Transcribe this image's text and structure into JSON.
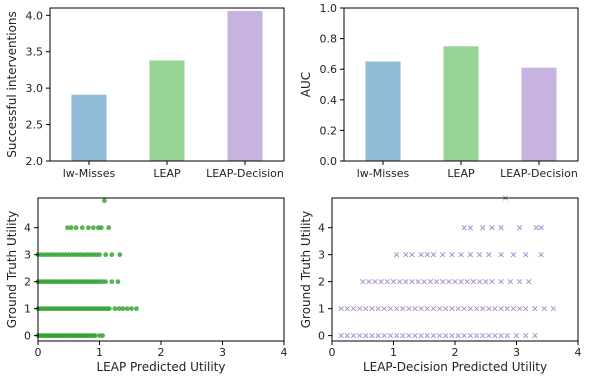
{
  "chart_data": [
    {
      "type": "bar",
      "categories": [
        "lw-Misses",
        "LEAP",
        "LEAP-Decision"
      ],
      "values": [
        2.91,
        3.38,
        4.06
      ],
      "colors": [
        "#8fbbd9",
        "#98d594",
        "#c8b3e0"
      ],
      "xlabel": "",
      "ylabel": "Successful interventions",
      "ylim": [
        2.0,
        4.1
      ],
      "yticks": [
        "2.0",
        "2.5",
        "3.0",
        "3.5",
        "4.0"
      ],
      "grid": false
    },
    {
      "type": "bar",
      "categories": [
        "lw-Misses",
        "LEAP",
        "LEAP-Decision"
      ],
      "values": [
        0.65,
        0.75,
        0.61
      ],
      "colors": [
        "#8fbbd9",
        "#98d594",
        "#c8b3e0"
      ],
      "xlabel": "",
      "ylabel": "AUC",
      "ylim": [
        0.0,
        1.0
      ],
      "yticks": [
        "0.0",
        "0.2",
        "0.4",
        "0.6",
        "0.8",
        "1.0"
      ],
      "grid": false
    },
    {
      "type": "scatter",
      "marker": "circle",
      "color": "#2ca02c",
      "xlabel": "LEAP Predicted Utility",
      "ylabel": "Ground Truth Utility",
      "xlim": [
        0,
        4
      ],
      "ylim": [
        -0.2,
        5.1
      ],
      "xticks": [
        "0",
        "1",
        "2",
        "3",
        "4"
      ],
      "yticks": [
        "0",
        "1",
        "2",
        "3",
        "4"
      ],
      "grid": false,
      "points": [
        [
          0.0,
          0
        ],
        [
          0.03,
          0
        ],
        [
          0.06,
          0
        ],
        [
          0.09,
          0
        ],
        [
          0.12,
          0
        ],
        [
          0.15,
          0
        ],
        [
          0.18,
          0
        ],
        [
          0.21,
          0
        ],
        [
          0.24,
          0
        ],
        [
          0.27,
          0
        ],
        [
          0.3,
          0
        ],
        [
          0.33,
          0
        ],
        [
          0.36,
          0
        ],
        [
          0.39,
          0
        ],
        [
          0.42,
          0
        ],
        [
          0.45,
          0
        ],
        [
          0.48,
          0
        ],
        [
          0.51,
          0
        ],
        [
          0.54,
          0
        ],
        [
          0.57,
          0
        ],
        [
          0.6,
          0
        ],
        [
          0.63,
          0
        ],
        [
          0.66,
          0
        ],
        [
          0.69,
          0
        ],
        [
          0.72,
          0
        ],
        [
          0.75,
          0
        ],
        [
          0.78,
          0
        ],
        [
          0.81,
          0
        ],
        [
          0.84,
          0
        ],
        [
          0.87,
          0
        ],
        [
          0.9,
          0
        ],
        [
          0.93,
          0
        ],
        [
          1.0,
          0
        ],
        [
          1.05,
          0
        ],
        [
          0.0,
          1
        ],
        [
          0.04,
          1
        ],
        [
          0.08,
          1
        ],
        [
          0.12,
          1
        ],
        [
          0.16,
          1
        ],
        [
          0.2,
          1
        ],
        [
          0.24,
          1
        ],
        [
          0.28,
          1
        ],
        [
          0.32,
          1
        ],
        [
          0.36,
          1
        ],
        [
          0.4,
          1
        ],
        [
          0.44,
          1
        ],
        [
          0.48,
          1
        ],
        [
          0.52,
          1
        ],
        [
          0.56,
          1
        ],
        [
          0.6,
          1
        ],
        [
          0.64,
          1
        ],
        [
          0.68,
          1
        ],
        [
          0.72,
          1
        ],
        [
          0.76,
          1
        ],
        [
          0.8,
          1
        ],
        [
          0.84,
          1
        ],
        [
          0.88,
          1
        ],
        [
          0.92,
          1
        ],
        [
          0.96,
          1
        ],
        [
          1.0,
          1
        ],
        [
          1.04,
          1
        ],
        [
          1.08,
          1
        ],
        [
          1.12,
          1
        ],
        [
          1.16,
          1
        ],
        [
          1.25,
          1
        ],
        [
          1.32,
          1
        ],
        [
          1.38,
          1
        ],
        [
          1.45,
          1
        ],
        [
          1.52,
          1
        ],
        [
          1.6,
          1
        ],
        [
          0.0,
          2
        ],
        [
          0.04,
          2
        ],
        [
          0.08,
          2
        ],
        [
          0.12,
          2
        ],
        [
          0.16,
          2
        ],
        [
          0.2,
          2
        ],
        [
          0.24,
          2
        ],
        [
          0.28,
          2
        ],
        [
          0.32,
          2
        ],
        [
          0.36,
          2
        ],
        [
          0.4,
          2
        ],
        [
          0.44,
          2
        ],
        [
          0.48,
          2
        ],
        [
          0.52,
          2
        ],
        [
          0.56,
          2
        ],
        [
          0.6,
          2
        ],
        [
          0.64,
          2
        ],
        [
          0.68,
          2
        ],
        [
          0.72,
          2
        ],
        [
          0.76,
          2
        ],
        [
          0.8,
          2
        ],
        [
          0.84,
          2
        ],
        [
          0.88,
          2
        ],
        [
          0.92,
          2
        ],
        [
          0.96,
          2
        ],
        [
          1.0,
          2
        ],
        [
          1.05,
          2
        ],
        [
          1.1,
          2
        ],
        [
          1.2,
          2
        ],
        [
          1.3,
          2
        ],
        [
          0.0,
          3
        ],
        [
          0.05,
          3
        ],
        [
          0.1,
          3
        ],
        [
          0.15,
          3
        ],
        [
          0.2,
          3
        ],
        [
          0.25,
          3
        ],
        [
          0.3,
          3
        ],
        [
          0.35,
          3
        ],
        [
          0.4,
          3
        ],
        [
          0.45,
          3
        ],
        [
          0.5,
          3
        ],
        [
          0.55,
          3
        ],
        [
          0.6,
          3
        ],
        [
          0.65,
          3
        ],
        [
          0.7,
          3
        ],
        [
          0.75,
          3
        ],
        [
          0.8,
          3
        ],
        [
          0.85,
          3
        ],
        [
          0.9,
          3
        ],
        [
          0.95,
          3
        ],
        [
          1.0,
          3
        ],
        [
          1.1,
          3
        ],
        [
          1.2,
          3
        ],
        [
          1.33,
          3
        ],
        [
          0.48,
          4
        ],
        [
          0.54,
          4
        ],
        [
          0.62,
          4
        ],
        [
          0.72,
          4
        ],
        [
          0.82,
          4
        ],
        [
          0.9,
          4
        ],
        [
          0.98,
          4
        ],
        [
          1.03,
          4
        ],
        [
          1.15,
          4
        ],
        [
          1.08,
          5
        ]
      ]
    },
    {
      "type": "scatter",
      "marker": "x",
      "color": "#9467bd",
      "xlabel": "LEAP-Decision Predicted Utility",
      "ylabel": "Ground Truth Utility",
      "xlim": [
        0,
        4
      ],
      "ylim": [
        -0.2,
        5.1
      ],
      "xticks": [
        "0",
        "1",
        "2",
        "3",
        "4"
      ],
      "yticks": [
        "0",
        "1",
        "2",
        "3",
        "4"
      ],
      "grid": false,
      "points": [
        [
          0.15,
          0
        ],
        [
          0.25,
          0
        ],
        [
          0.35,
          0
        ],
        [
          0.45,
          0
        ],
        [
          0.55,
          0
        ],
        [
          0.65,
          0
        ],
        [
          0.75,
          0
        ],
        [
          0.85,
          0
        ],
        [
          0.95,
          0
        ],
        [
          1.05,
          0
        ],
        [
          1.15,
          0
        ],
        [
          1.25,
          0
        ],
        [
          1.35,
          0
        ],
        [
          1.45,
          0
        ],
        [
          1.55,
          0
        ],
        [
          1.65,
          0
        ],
        [
          1.75,
          0
        ],
        [
          1.85,
          0
        ],
        [
          1.95,
          0
        ],
        [
          2.05,
          0
        ],
        [
          2.15,
          0
        ],
        [
          2.25,
          0
        ],
        [
          2.35,
          0
        ],
        [
          2.45,
          0
        ],
        [
          2.55,
          0
        ],
        [
          2.65,
          0
        ],
        [
          2.75,
          0
        ],
        [
          2.85,
          0
        ],
        [
          3.0,
          0
        ],
        [
          3.15,
          0
        ],
        [
          3.3,
          0
        ],
        [
          0.15,
          1
        ],
        [
          0.25,
          1
        ],
        [
          0.35,
          1
        ],
        [
          0.45,
          1
        ],
        [
          0.55,
          1
        ],
        [
          0.65,
          1
        ],
        [
          0.75,
          1
        ],
        [
          0.85,
          1
        ],
        [
          0.95,
          1
        ],
        [
          1.05,
          1
        ],
        [
          1.15,
          1
        ],
        [
          1.25,
          1
        ],
        [
          1.35,
          1
        ],
        [
          1.45,
          1
        ],
        [
          1.55,
          1
        ],
        [
          1.65,
          1
        ],
        [
          1.75,
          1
        ],
        [
          1.85,
          1
        ],
        [
          1.95,
          1
        ],
        [
          2.05,
          1
        ],
        [
          2.15,
          1
        ],
        [
          2.25,
          1
        ],
        [
          2.35,
          1
        ],
        [
          2.45,
          1
        ],
        [
          2.55,
          1
        ],
        [
          2.65,
          1
        ],
        [
          2.75,
          1
        ],
        [
          2.85,
          1
        ],
        [
          2.95,
          1
        ],
        [
          3.05,
          1
        ],
        [
          3.15,
          1
        ],
        [
          3.3,
          1
        ],
        [
          3.45,
          1
        ],
        [
          3.6,
          1
        ],
        [
          0.5,
          2
        ],
        [
          0.6,
          2
        ],
        [
          0.7,
          2
        ],
        [
          0.8,
          2
        ],
        [
          0.9,
          2
        ],
        [
          1.0,
          2
        ],
        [
          1.1,
          2
        ],
        [
          1.2,
          2
        ],
        [
          1.3,
          2
        ],
        [
          1.4,
          2
        ],
        [
          1.5,
          2
        ],
        [
          1.6,
          2
        ],
        [
          1.7,
          2
        ],
        [
          1.8,
          2
        ],
        [
          1.9,
          2
        ],
        [
          2.0,
          2
        ],
        [
          2.1,
          2
        ],
        [
          2.2,
          2
        ],
        [
          2.3,
          2
        ],
        [
          2.4,
          2
        ],
        [
          2.5,
          2
        ],
        [
          2.6,
          2
        ],
        [
          2.75,
          2
        ],
        [
          2.9,
          2
        ],
        [
          3.05,
          2
        ],
        [
          3.2,
          2
        ],
        [
          1.05,
          3
        ],
        [
          1.2,
          3
        ],
        [
          1.3,
          3
        ],
        [
          1.45,
          3
        ],
        [
          1.55,
          3
        ],
        [
          1.65,
          3
        ],
        [
          1.8,
          3
        ],
        [
          1.95,
          3
        ],
        [
          2.1,
          3
        ],
        [
          2.25,
          3
        ],
        [
          2.4,
          3
        ],
        [
          2.55,
          3
        ],
        [
          2.75,
          3
        ],
        [
          2.95,
          3
        ],
        [
          3.15,
          3
        ],
        [
          3.4,
          3
        ],
        [
          2.15,
          4
        ],
        [
          2.25,
          4
        ],
        [
          2.45,
          4
        ],
        [
          2.6,
          4
        ],
        [
          2.75,
          4
        ],
        [
          3.05,
          4
        ],
        [
          3.32,
          4
        ],
        [
          3.4,
          4
        ],
        [
          2.82,
          5.1
        ]
      ]
    }
  ]
}
